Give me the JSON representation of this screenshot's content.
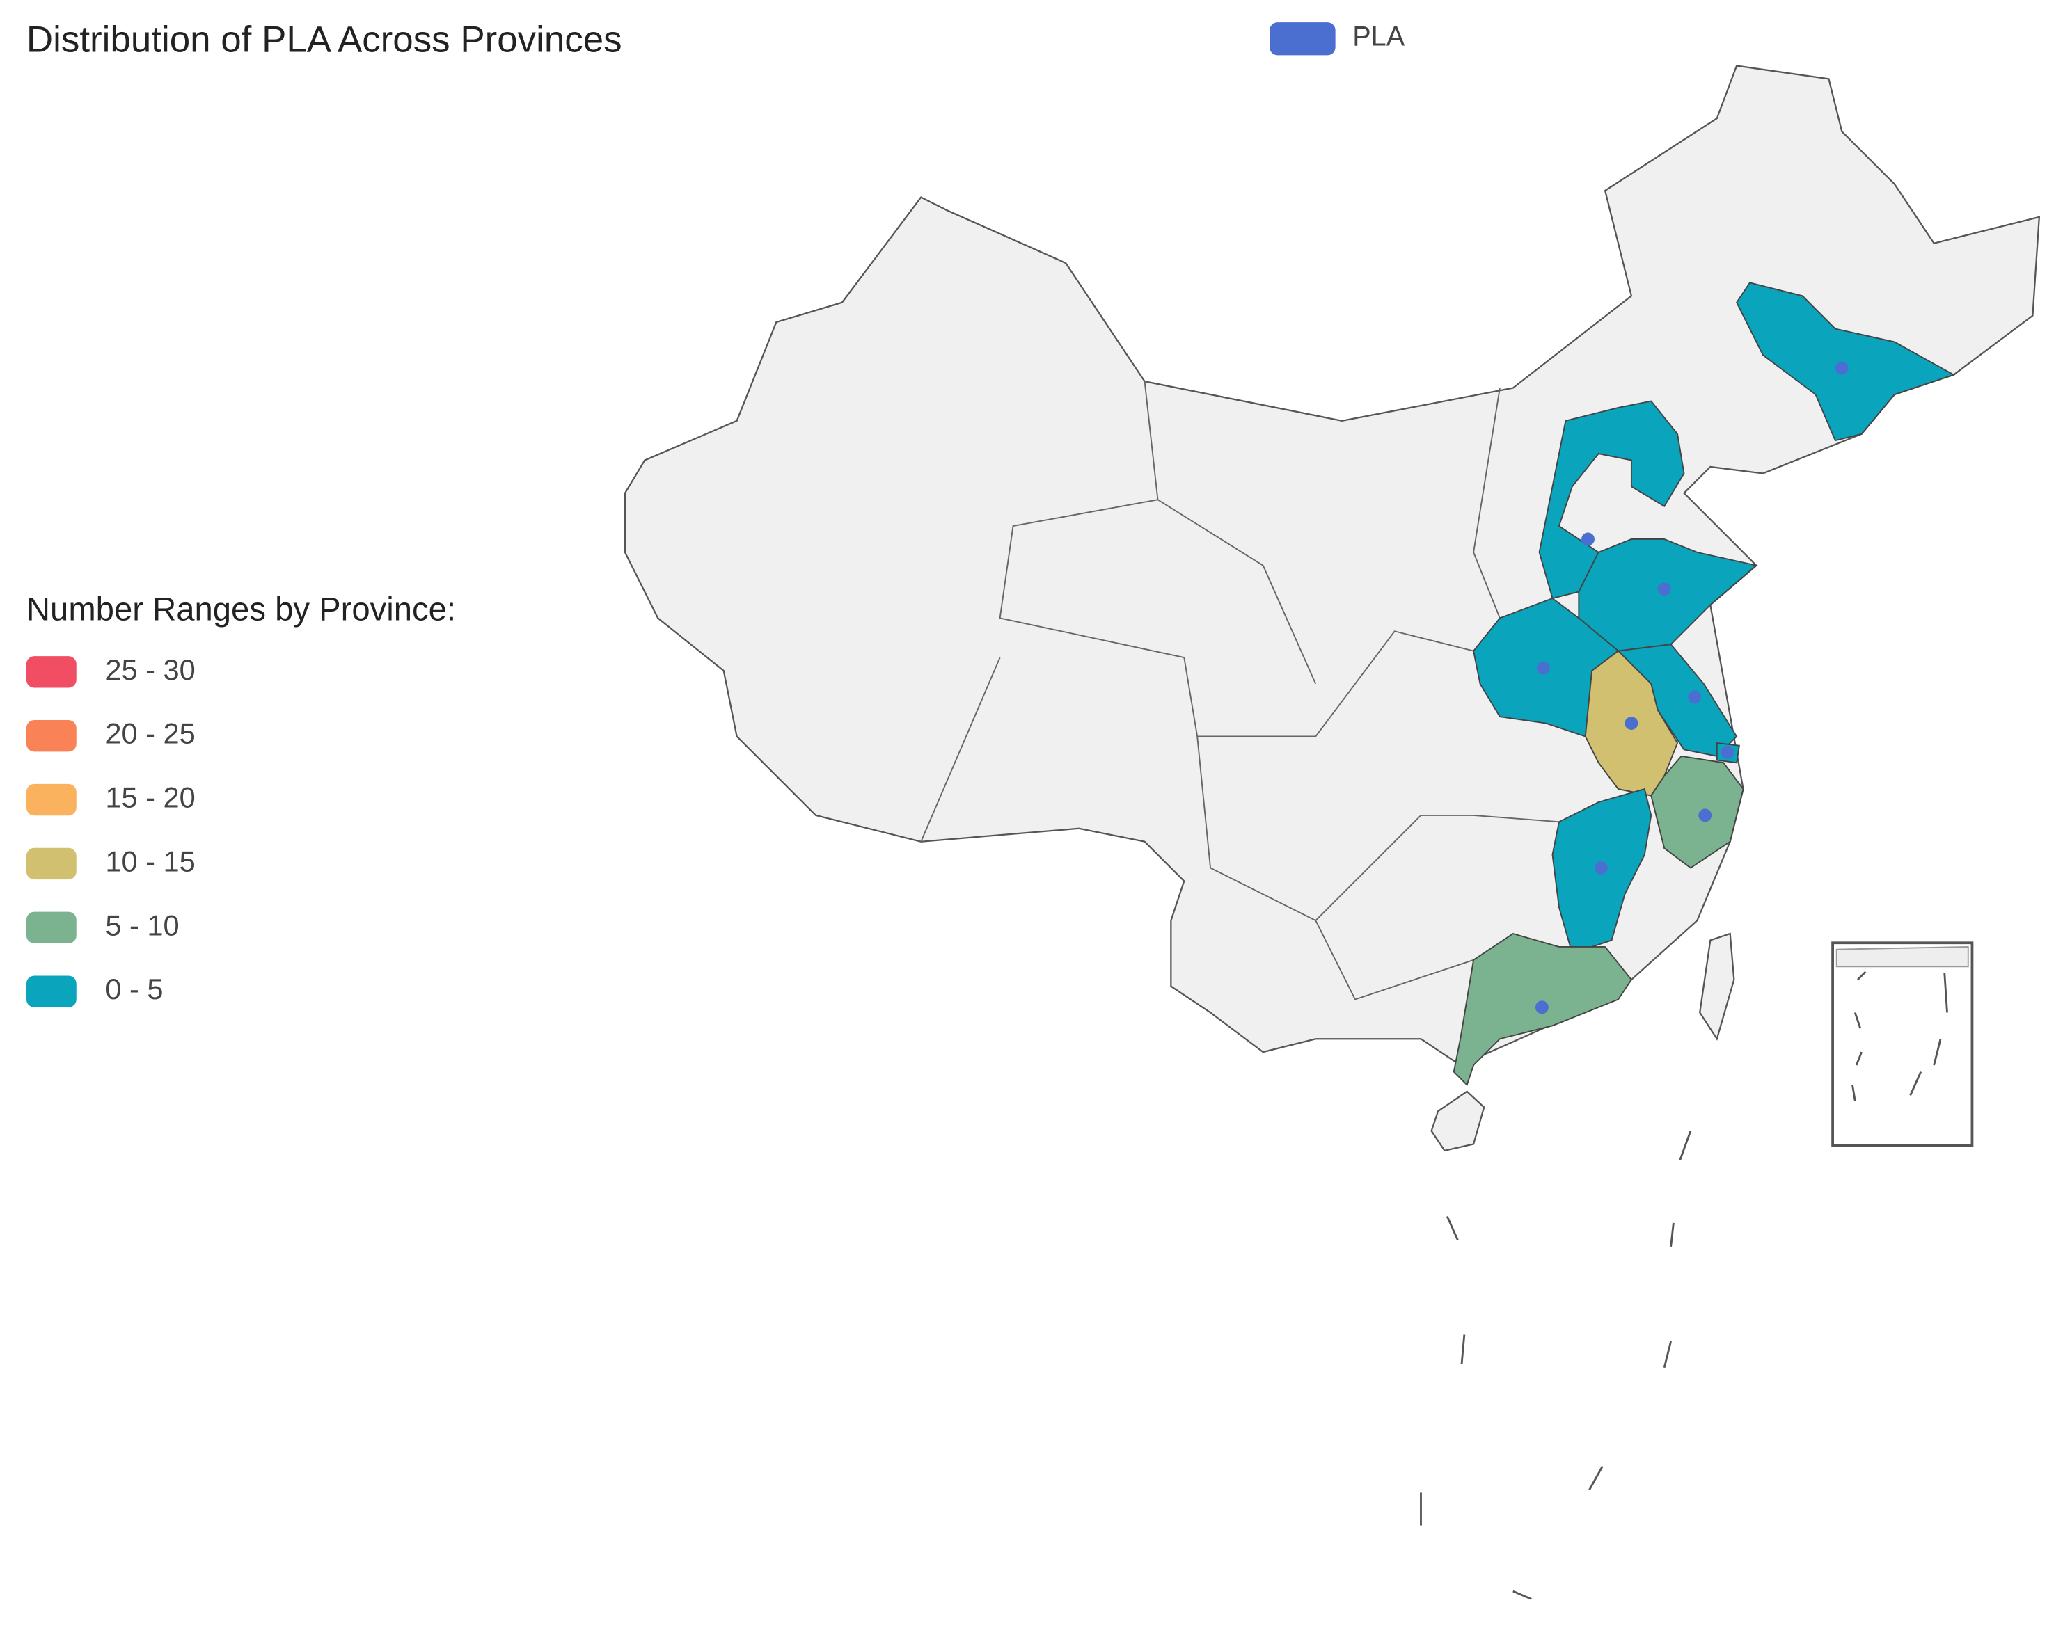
{
  "chart_data": {
    "type": "map",
    "title": "Distribution of PLA Across Provinces",
    "series": [
      {
        "name": "PLA",
        "color": "#4a6fd0",
        "values": [
          3,
          2,
          4,
          3,
          4,
          12,
          1,
          7,
          3,
          8
        ]
      }
    ],
    "visual_map": {
      "title": "Number Ranges by Province:",
      "pieces": [
        {
          "min": 25,
          "max": 30,
          "label": "25 - 30",
          "color": "#f24e63"
        },
        {
          "min": 20,
          "max": 25,
          "label": "20 - 25",
          "color": "#f98357"
        },
        {
          "min": 15,
          "max": 20,
          "label": "15 - 20",
          "color": "#fbb25f"
        },
        {
          "min": 10,
          "max": 15,
          "label": "10 - 15",
          "color": "#d2c071"
        },
        {
          "min": 5,
          "max": 10,
          "label": "5 - 10",
          "color": "#7bb28f"
        },
        {
          "min": 0,
          "max": 5,
          "label": "0 - 5",
          "color": "#0aa4bd"
        }
      ]
    },
    "base_color": "#f0f0f0"
  }
}
